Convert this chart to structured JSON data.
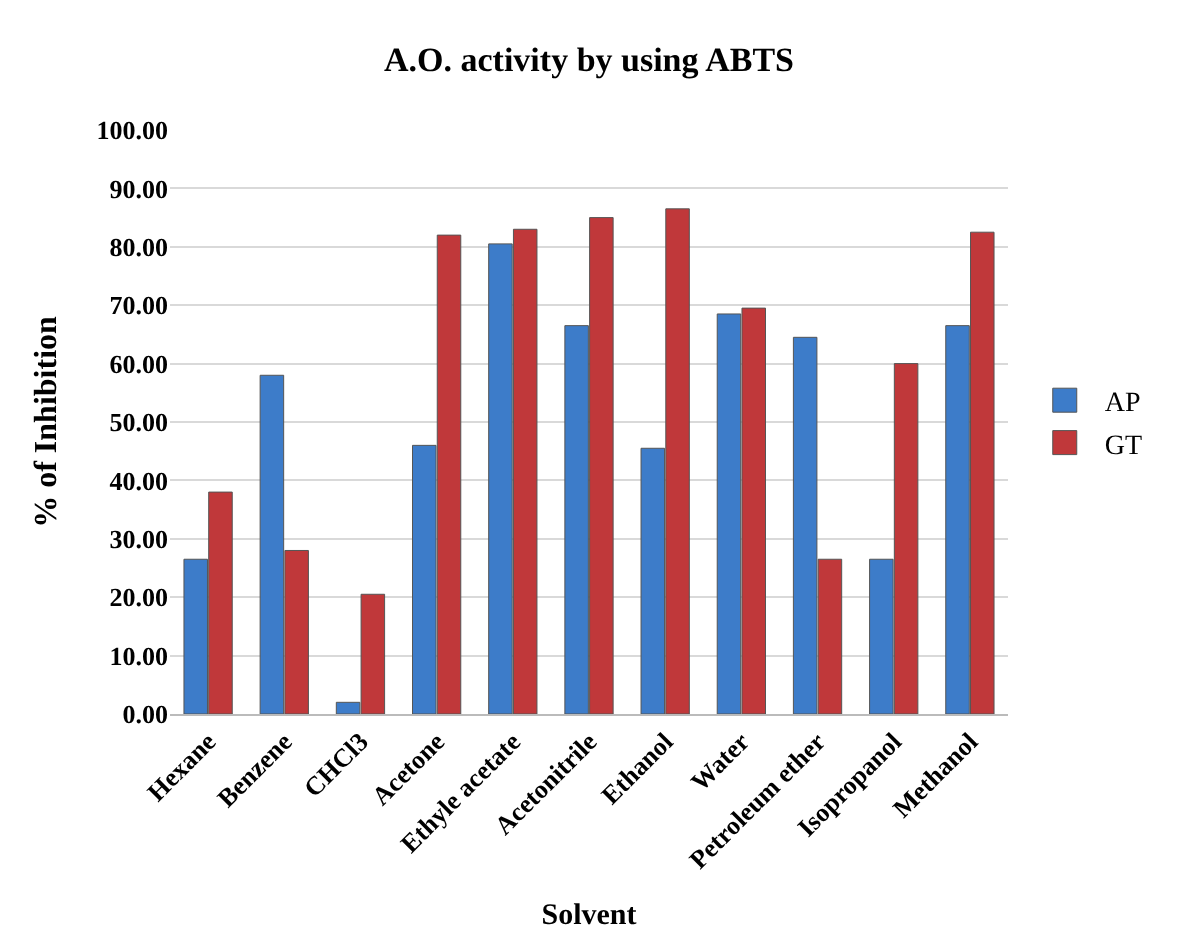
{
  "chart_data": {
    "type": "bar",
    "title": "A.O. activity by using ABTS",
    "xlabel": "Solvent",
    "ylabel": "% of Inhibition",
    "categories": [
      "Hexane",
      "Benzene",
      "CHCl3",
      "Acetone",
      "Ethyle acetate",
      "Acetonitrile",
      "Ethanol",
      "Water",
      "Petroleum ether",
      "Isopropanol",
      "Methanol"
    ],
    "series": [
      {
        "name": "AP",
        "color": "#3d7cc9",
        "values": [
          26.5,
          58,
          2,
          46,
          80.5,
          66.5,
          45.5,
          68.5,
          64.5,
          26.5,
          66.5
        ]
      },
      {
        "name": "GT",
        "color": "#c0383a",
        "values": [
          38,
          28,
          20.5,
          82,
          83,
          85,
          86.5,
          69.5,
          26.5,
          60,
          82.5
        ]
      }
    ],
    "ylim": [
      0,
      100
    ],
    "yticks": [
      {
        "value": 0,
        "label": "0.00"
      },
      {
        "value": 10,
        "label": "10.00"
      },
      {
        "value": 20,
        "label": "20.00"
      },
      {
        "value": 30,
        "label": "30.00"
      },
      {
        "value": 40,
        "label": "40.00"
      },
      {
        "value": 50,
        "label": "50.00"
      },
      {
        "value": 60,
        "label": "60.00"
      },
      {
        "value": 70,
        "label": "70.00"
      },
      {
        "value": 80,
        "label": "80.00"
      },
      {
        "value": 90,
        "label": "90.00"
      },
      {
        "value": 100,
        "label": "100.00"
      }
    ],
    "grid": "y",
    "legend": "right"
  }
}
